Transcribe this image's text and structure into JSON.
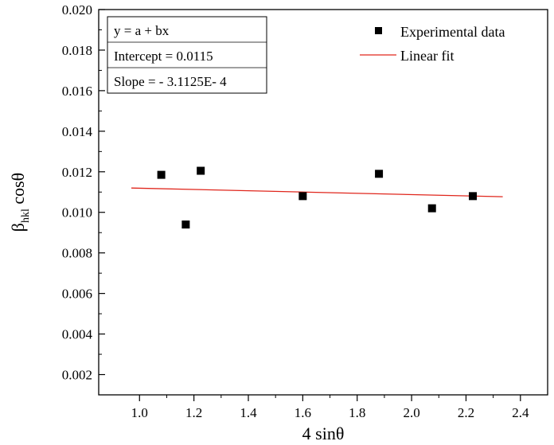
{
  "chart_data": {
    "type": "scatter",
    "xlabel": "4 sinθ",
    "ylabel_main": "β",
    "ylabel_sub": "hkl",
    "ylabel_tail": " cosθ",
    "xlim": [
      0.85,
      2.5
    ],
    "ylim": [
      0.001,
      0.02
    ],
    "x_ticks": [
      1.0,
      1.2,
      1.4,
      1.6,
      1.8,
      2.0,
      2.2,
      2.4
    ],
    "x_tick_labels": [
      "1.0",
      "1.2",
      "1.4",
      "1.6",
      "1.8",
      "2.0",
      "2.2",
      "2.4"
    ],
    "y_ticks": [
      0.002,
      0.004,
      0.006,
      0.008,
      0.01,
      0.012,
      0.014,
      0.016,
      0.018,
      0.02
    ],
    "y_tick_labels": [
      "0.002",
      "0.004",
      "0.006",
      "0.008",
      "0.010",
      "0.012",
      "0.014",
      "0.016",
      "0.018",
      "0.020"
    ],
    "grid": false,
    "series": [
      {
        "name": "Experimental data",
        "kind": "scatter",
        "color": "#000000",
        "x": [
          1.08,
          1.17,
          1.225,
          1.6,
          1.88,
          2.075,
          2.225
        ],
        "y": [
          0.01185,
          0.0094,
          0.01205,
          0.0108,
          0.0119,
          0.0102,
          0.0108
        ]
      },
      {
        "name": "Linear fit",
        "kind": "line",
        "color": "#e0261c",
        "x": [
          0.97,
          2.335
        ],
        "y": [
          0.0112,
          0.01077
        ]
      }
    ],
    "fit_box": {
      "equation": "y = a + bx",
      "intercept": "Intercept = 0.0115",
      "slope": "Slope = - 3.1125E- 4"
    },
    "legend_position": "top-right"
  }
}
